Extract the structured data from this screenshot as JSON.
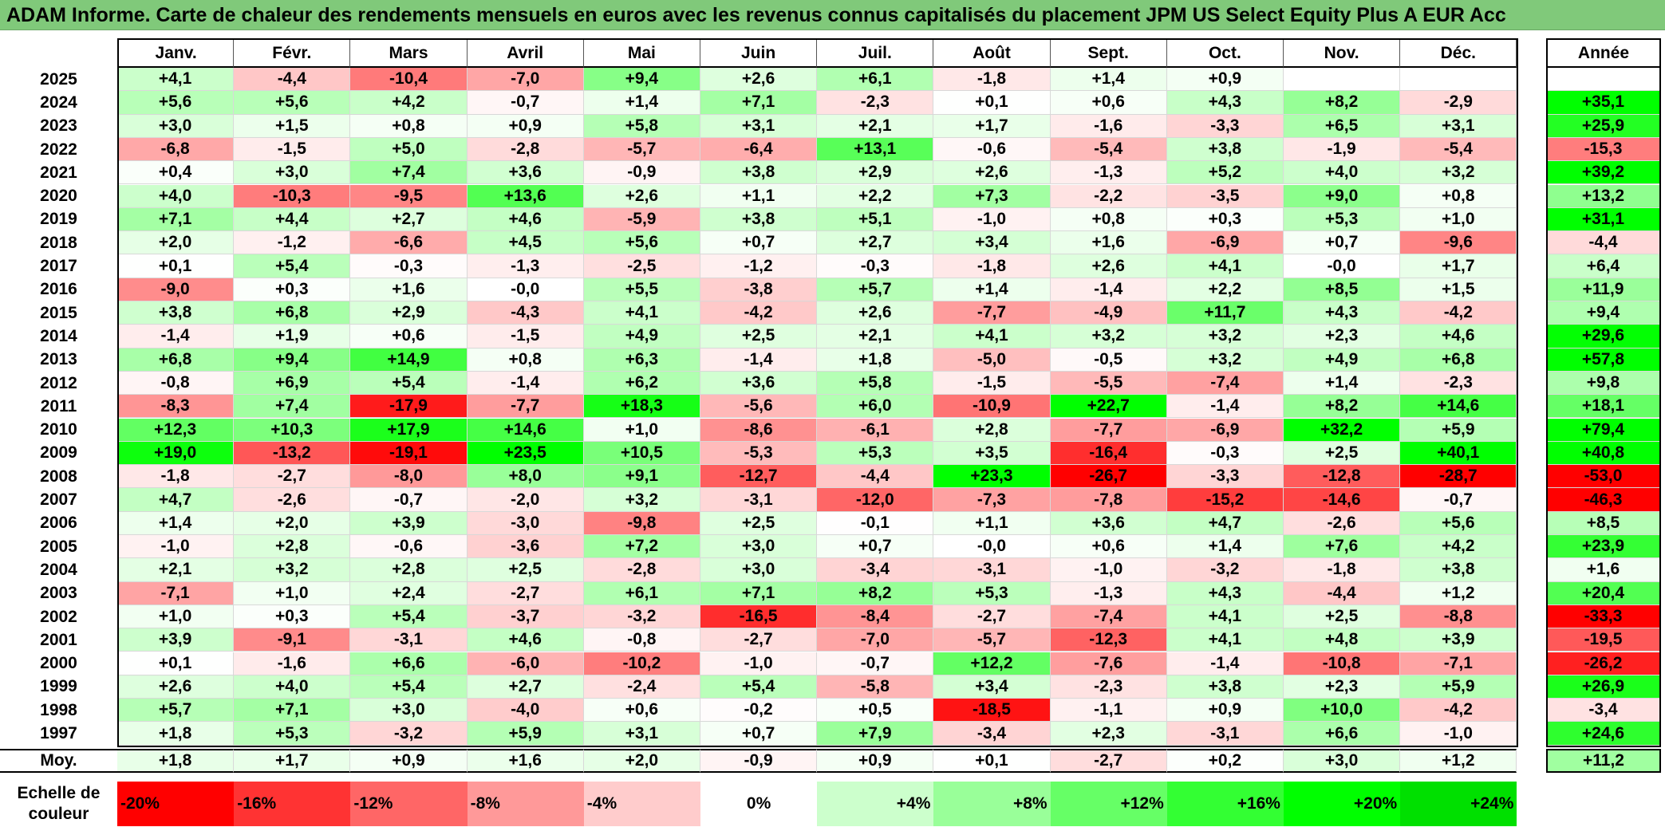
{
  "title": "ADAM Informe. Carte de chaleur des rendements mensuels en euros avec les revenus connus capitalisés du placement JPM US Select Equity Plus A EUR Acc",
  "months": [
    "Janv.",
    "Févr.",
    "Mars",
    "Avril",
    "Mai",
    "Juin",
    "Juil.",
    "Août",
    "Sept.",
    "Oct.",
    "Nov.",
    "Déc."
  ],
  "year_header": "Année",
  "avg_label": "Moy.",
  "chart_data": {
    "type": "heatmap",
    "title": "ADAM Informe. Carte de chaleur des rendements mensuels en euros avec les revenus connus capitalisés du placement JPM US Select Equity Plus A EUR Acc",
    "columns": [
      "Janv.",
      "Févr.",
      "Mars",
      "Avril",
      "Mai",
      "Juin",
      "Juil.",
      "Août",
      "Sept.",
      "Oct.",
      "Nov.",
      "Déc.",
      "Année"
    ],
    "rows": [
      {
        "year": "2025",
        "values": [
          "+4,1",
          "-4,4",
          "-10,4",
          "-7,0",
          "+9,4",
          "+2,6",
          "+6,1",
          "-1,8",
          "+1,4",
          "+0,9",
          "",
          ""
        ],
        "annual": ""
      },
      {
        "year": "2024",
        "values": [
          "+5,6",
          "+5,6",
          "+4,2",
          "-0,7",
          "+1,4",
          "+7,1",
          "-2,3",
          "+0,1",
          "+0,6",
          "+4,3",
          "+8,2",
          "-2,9"
        ],
        "annual": "+35,1"
      },
      {
        "year": "2023",
        "values": [
          "+3,0",
          "+1,5",
          "+0,8",
          "+0,9",
          "+5,8",
          "+3,1",
          "+2,1",
          "+1,7",
          "-1,6",
          "-3,3",
          "+6,5",
          "+3,1"
        ],
        "annual": "+25,9"
      },
      {
        "year": "2022",
        "values": [
          "-6,8",
          "-1,5",
          "+5,0",
          "-2,8",
          "-5,7",
          "-6,4",
          "+13,1",
          "-0,6",
          "-5,4",
          "+3,8",
          "-1,9",
          "-5,4"
        ],
        "annual": "-15,3"
      },
      {
        "year": "2021",
        "values": [
          "+0,4",
          "+3,0",
          "+7,4",
          "+3,6",
          "-0,9",
          "+3,8",
          "+2,9",
          "+2,6",
          "-1,3",
          "+5,2",
          "+4,0",
          "+3,2"
        ],
        "annual": "+39,2"
      },
      {
        "year": "2020",
        "values": [
          "+4,0",
          "-10,3",
          "-9,5",
          "+13,6",
          "+2,6",
          "+1,1",
          "+2,2",
          "+7,3",
          "-2,2",
          "-3,5",
          "+9,0",
          "+0,8"
        ],
        "annual": "+13,2"
      },
      {
        "year": "2019",
        "values": [
          "+7,1",
          "+4,4",
          "+2,7",
          "+4,6",
          "-5,9",
          "+3,8",
          "+5,1",
          "-1,0",
          "+0,8",
          "+0,3",
          "+5,3",
          "+1,0"
        ],
        "annual": "+31,1"
      },
      {
        "year": "2018",
        "values": [
          "+2,0",
          "-1,2",
          "-6,6",
          "+4,5",
          "+5,6",
          "+0,7",
          "+2,7",
          "+3,4",
          "+1,6",
          "-6,9",
          "+0,7",
          "-9,6"
        ],
        "annual": "-4,4"
      },
      {
        "year": "2017",
        "values": [
          "+0,1",
          "+5,4",
          "-0,3",
          "-1,3",
          "-2,5",
          "-1,2",
          "-0,3",
          "-1,8",
          "+2,6",
          "+4,1",
          "-0,0",
          "+1,7"
        ],
        "annual": "+6,4"
      },
      {
        "year": "2016",
        "values": [
          "-9,0",
          "+0,3",
          "+1,6",
          "-0,0",
          "+5,5",
          "-3,8",
          "+5,7",
          "+1,4",
          "-1,4",
          "+2,2",
          "+8,5",
          "+1,5"
        ],
        "annual": "+11,9"
      },
      {
        "year": "2015",
        "values": [
          "+3,8",
          "+6,8",
          "+2,9",
          "-4,3",
          "+4,1",
          "-4,2",
          "+2,6",
          "-7,7",
          "-4,9",
          "+11,7",
          "+4,3",
          "-4,2"
        ],
        "annual": "+9,4"
      },
      {
        "year": "2014",
        "values": [
          "-1,4",
          "+1,9",
          "+0,6",
          "-1,5",
          "+4,9",
          "+2,5",
          "+2,1",
          "+4,1",
          "+3,2",
          "+3,2",
          "+2,3",
          "+4,6"
        ],
        "annual": "+29,6"
      },
      {
        "year": "2013",
        "values": [
          "+6,8",
          "+9,4",
          "+14,9",
          "+0,8",
          "+6,3",
          "-1,4",
          "+1,8",
          "-5,0",
          "-0,5",
          "+3,2",
          "+4,9",
          "+6,8"
        ],
        "annual": "+57,8"
      },
      {
        "year": "2012",
        "values": [
          "-0,8",
          "+6,9",
          "+5,4",
          "-1,4",
          "+6,2",
          "+3,6",
          "+5,8",
          "-1,5",
          "-5,5",
          "-7,4",
          "+1,4",
          "-2,3"
        ],
        "annual": "+9,8"
      },
      {
        "year": "2011",
        "values": [
          "-8,3",
          "+7,4",
          "-17,9",
          "-7,7",
          "+18,3",
          "-5,6",
          "+6,0",
          "-10,9",
          "+22,7",
          "-1,4",
          "+8,2",
          "+14,6"
        ],
        "annual": "+18,1"
      },
      {
        "year": "2010",
        "values": [
          "+12,3",
          "+10,3",
          "+17,9",
          "+14,6",
          "+1,0",
          "-8,6",
          "-6,1",
          "+2,8",
          "-7,7",
          "-6,9",
          "+32,2",
          "+5,9"
        ],
        "annual": "+79,4"
      },
      {
        "year": "2009",
        "values": [
          "+19,0",
          "-13,2",
          "-19,1",
          "+23,5",
          "+10,5",
          "-5,3",
          "+5,3",
          "+3,5",
          "-16,4",
          "-0,3",
          "+2,5",
          "+40,1"
        ],
        "annual": "+40,8"
      },
      {
        "year": "2008",
        "values": [
          "-1,8",
          "-2,7",
          "-8,0",
          "+8,0",
          "+9,1",
          "-12,7",
          "-4,4",
          "+23,3",
          "-26,7",
          "-3,3",
          "-12,8",
          "-28,7"
        ],
        "annual": "-53,0"
      },
      {
        "year": "2007",
        "values": [
          "+4,7",
          "-2,6",
          "-0,7",
          "-2,0",
          "+3,2",
          "-3,1",
          "-12,0",
          "-7,3",
          "-7,8",
          "-15,2",
          "-14,6",
          "-0,7"
        ],
        "annual": "-46,3"
      },
      {
        "year": "2006",
        "values": [
          "+1,4",
          "+2,0",
          "+3,9",
          "-3,0",
          "-9,8",
          "+2,5",
          "-0,1",
          "+1,1",
          "+3,6",
          "+4,7",
          "-2,6",
          "+5,6"
        ],
        "annual": "+8,5"
      },
      {
        "year": "2005",
        "values": [
          "-1,0",
          "+2,8",
          "-0,6",
          "-3,6",
          "+7,2",
          "+3,0",
          "+0,7",
          "-0,0",
          "+0,6",
          "+1,4",
          "+7,6",
          "+4,2"
        ],
        "annual": "+23,9"
      },
      {
        "year": "2004",
        "values": [
          "+2,1",
          "+3,2",
          "+2,8",
          "+2,5",
          "-2,8",
          "+3,0",
          "-3,4",
          "-3,1",
          "-1,0",
          "-3,2",
          "-1,8",
          "+3,8"
        ],
        "annual": "+1,6"
      },
      {
        "year": "2003",
        "values": [
          "-7,1",
          "+1,0",
          "+2,4",
          "-2,7",
          "+6,1",
          "+7,1",
          "+8,2",
          "+5,3",
          "-1,3",
          "+4,3",
          "-4,4",
          "+1,2"
        ],
        "annual": "+20,4"
      },
      {
        "year": "2002",
        "values": [
          "+1,0",
          "+0,3",
          "+5,4",
          "-3,7",
          "-3,2",
          "-16,5",
          "-8,4",
          "-2,7",
          "-7,4",
          "+4,1",
          "+2,5",
          "-8,8"
        ],
        "annual": "-33,3"
      },
      {
        "year": "2001",
        "values": [
          "+3,9",
          "-9,1",
          "-3,1",
          "+4,6",
          "-0,8",
          "-2,7",
          "-7,0",
          "-5,7",
          "-12,3",
          "+4,1",
          "+4,8",
          "+3,9"
        ],
        "annual": "-19,5"
      },
      {
        "year": "2000",
        "values": [
          "+0,1",
          "-1,6",
          "+6,6",
          "-6,0",
          "-10,2",
          "-1,0",
          "-0,7",
          "+12,2",
          "-7,6",
          "-1,4",
          "-10,8",
          "-7,1"
        ],
        "annual": "-26,2"
      },
      {
        "year": "1999",
        "values": [
          "+2,6",
          "+4,0",
          "+5,4",
          "+2,7",
          "-2,4",
          "+5,4",
          "-5,8",
          "+3,4",
          "-2,3",
          "+3,8",
          "+2,3",
          "+5,9"
        ],
        "annual": "+26,9"
      },
      {
        "year": "1998",
        "values": [
          "+5,7",
          "+7,1",
          "+3,0",
          "-4,0",
          "+0,6",
          "-0,2",
          "+0,5",
          "-18,5",
          "-1,1",
          "+0,9",
          "+10,0",
          "-4,2"
        ],
        "annual": "-3,4"
      },
      {
        "year": "1997",
        "values": [
          "+1,8",
          "+5,3",
          "-3,2",
          "+5,9",
          "+3,1",
          "+0,7",
          "+7,9",
          "-3,4",
          "+2,3",
          "-3,1",
          "+6,6",
          "-1,0"
        ],
        "annual": "+24,6"
      }
    ],
    "average": {
      "values": [
        "+1,8",
        "+1,7",
        "+0,9",
        "+1,6",
        "+2,0",
        "-0,9",
        "+0,9",
        "+0,1",
        "-2,7",
        "+0,2",
        "+3,0",
        "+1,2"
      ],
      "annual": "+11,2"
    },
    "color_scale": {
      "label": "Echelle de couleur",
      "stops": [
        {
          "label": "-20%",
          "value": -20,
          "color": "#ff0000"
        },
        {
          "label": "-16%",
          "value": -16,
          "color": "#ff3333"
        },
        {
          "label": "-12%",
          "value": -12,
          "color": "#ff6666"
        },
        {
          "label": "-8%",
          "value": -8,
          "color": "#ff9999"
        },
        {
          "label": "-4%",
          "value": -4,
          "color": "#ffcccc"
        },
        {
          "label": "0%",
          "value": 0,
          "color": "#ffffff"
        },
        {
          "label": "+4%",
          "value": 4,
          "color": "#ccffcc"
        },
        {
          "label": "+8%",
          "value": 8,
          "color": "#99ff99"
        },
        {
          "label": "+12%",
          "value": 12,
          "color": "#66ff66"
        },
        {
          "label": "+16%",
          "value": 16,
          "color": "#33ff33"
        },
        {
          "label": "+20%",
          "value": 20,
          "color": "#00ff00"
        },
        {
          "label": "+24%",
          "value": 24,
          "color": "#00e000"
        }
      ]
    }
  }
}
